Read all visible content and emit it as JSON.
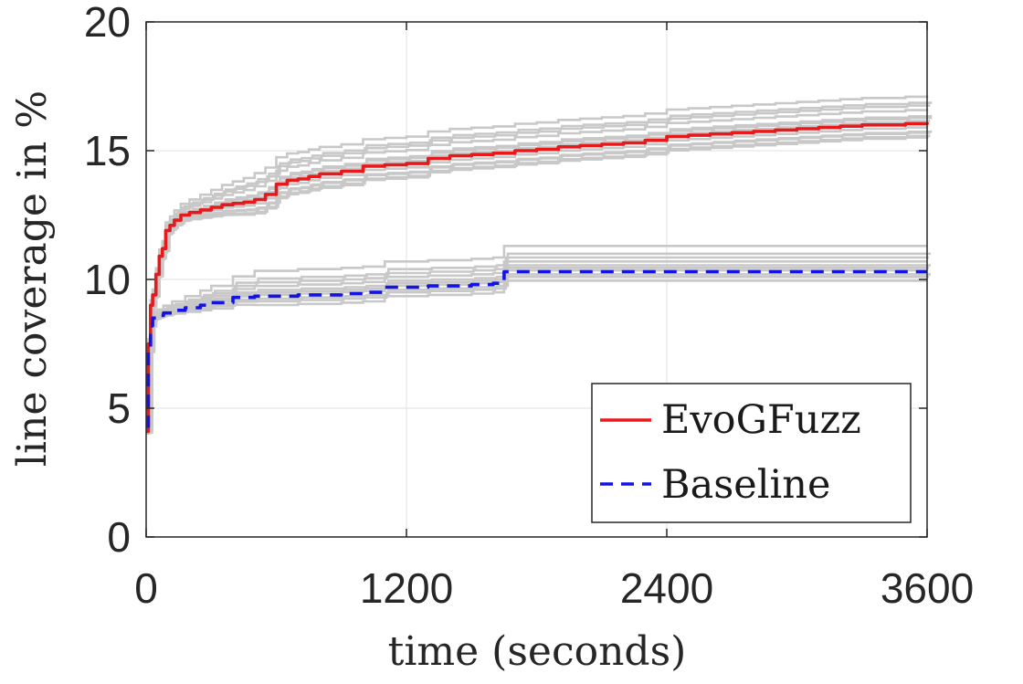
{
  "chart_data": {
    "type": "line",
    "xlabel": "time (seconds)",
    "ylabel": "line coverage in %",
    "xlim": [
      0,
      3600
    ],
    "ylim": [
      0,
      20
    ],
    "xticks": [
      0,
      1200,
      2400,
      3600
    ],
    "yticks": [
      0,
      5,
      10,
      15,
      20
    ],
    "xtick_labels": [
      "0",
      "1200",
      "2400",
      "3600"
    ],
    "ytick_labels": [
      "0",
      "5",
      "10",
      "15",
      "20"
    ],
    "grid": true,
    "legend_position": "bottom-right",
    "colors": {
      "evogfuzz": "#e8191b",
      "baseline": "#1313e6",
      "runs": "#c8c8c8"
    },
    "series": [
      {
        "name": "EvoGFuzz",
        "style": "solid",
        "x": [
          0,
          10,
          20,
          30,
          45,
          60,
          75,
          90,
          110,
          130,
          160,
          200,
          250,
          300,
          350,
          400,
          450,
          500,
          550,
          600,
          650,
          700,
          750,
          800,
          900,
          1000,
          1100,
          1200,
          1300,
          1400,
          1500,
          1600,
          1700,
          1800,
          1900,
          2000,
          2100,
          2200,
          2300,
          2400,
          2500,
          2600,
          2700,
          2800,
          2900,
          3000,
          3100,
          3200,
          3300,
          3400,
          3500,
          3600
        ],
        "y": [
          4.1,
          7.5,
          9.0,
          9.4,
          10.2,
          10.9,
          11.2,
          11.9,
          12.1,
          12.3,
          12.5,
          12.6,
          12.7,
          12.8,
          12.9,
          12.95,
          13.0,
          13.1,
          13.3,
          13.7,
          13.85,
          13.9,
          14.0,
          14.1,
          14.2,
          14.4,
          14.45,
          14.5,
          14.7,
          14.8,
          14.85,
          14.9,
          15.0,
          15.05,
          15.15,
          15.2,
          15.25,
          15.3,
          15.4,
          15.55,
          15.6,
          15.65,
          15.7,
          15.75,
          15.8,
          15.85,
          15.9,
          15.95,
          16.0,
          16.0,
          16.05,
          16.1
        ]
      },
      {
        "name": "Baseline",
        "style": "dashed",
        "x": [
          0,
          10,
          20,
          30,
          50,
          80,
          120,
          180,
          250,
          300,
          400,
          500,
          700,
          900,
          1000,
          1050,
          1100,
          1300,
          1500,
          1600,
          1650,
          1700,
          2000,
          2400,
          2800,
          3200,
          3600
        ],
        "y": [
          4.3,
          7.2,
          8.2,
          8.5,
          8.6,
          8.7,
          8.8,
          8.9,
          9.0,
          9.1,
          9.3,
          9.35,
          9.4,
          9.45,
          9.5,
          9.5,
          9.7,
          9.75,
          9.8,
          9.85,
          10.3,
          10.3,
          10.3,
          10.3,
          10.3,
          10.3,
          10.3
        ]
      }
    ]
  }
}
